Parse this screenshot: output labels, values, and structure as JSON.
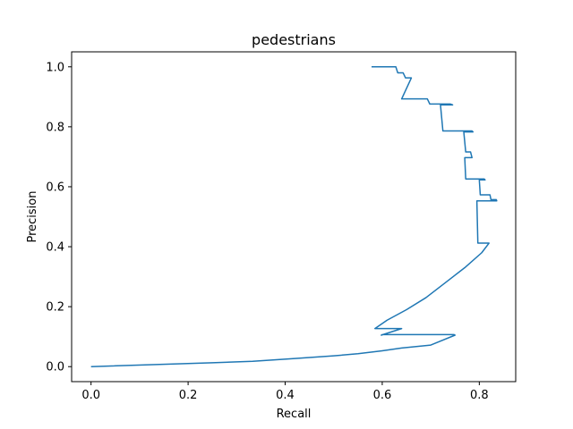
{
  "chart_data": {
    "type": "line",
    "title": "pedestrians",
    "xlabel": "Recall",
    "ylabel": "Precision",
    "xlim": [
      -0.04,
      0.875
    ],
    "ylim": [
      -0.05,
      1.05
    ],
    "xticks": [
      0.0,
      0.2,
      0.4,
      0.6,
      0.8
    ],
    "yticks": [
      0.0,
      0.2,
      0.4,
      0.6,
      0.8,
      1.0
    ],
    "tick_labels_x": [
      "0.0",
      "0.2",
      "0.4",
      "0.6",
      "0.8"
    ],
    "tick_labels_y": [
      "0.0",
      "0.2",
      "0.4",
      "0.6",
      "0.8",
      "1.0"
    ],
    "grid": false,
    "series": [
      {
        "color": "#1f77b4",
        "x": [
          0.578,
          0.628,
          0.632,
          0.643,
          0.648,
          0.66,
          0.64,
          0.693,
          0.698,
          0.74,
          0.745,
          0.72,
          0.725,
          0.785,
          0.787,
          0.768,
          0.772,
          0.782,
          0.785,
          0.77,
          0.772,
          0.81,
          0.812,
          0.8,
          0.802,
          0.822,
          0.824,
          0.835,
          0.836,
          0.795,
          0.797,
          0.82,
          0.805,
          0.77,
          0.73,
          0.69,
          0.65,
          0.61,
          0.585,
          0.64,
          0.598,
          0.6,
          0.748,
          0.75,
          0.7,
          0.64,
          0.6,
          0.55,
          0.5,
          0.42,
          0.333,
          0.25,
          0.0
        ],
        "y": [
          1.0,
          1.0,
          0.98,
          0.98,
          0.963,
          0.963,
          0.893,
          0.893,
          0.876,
          0.876,
          0.873,
          0.873,
          0.786,
          0.786,
          0.783,
          0.783,
          0.716,
          0.716,
          0.697,
          0.697,
          0.626,
          0.626,
          0.623,
          0.623,
          0.573,
          0.573,
          0.557,
          0.557,
          0.553,
          0.553,
          0.412,
          0.412,
          0.38,
          0.33,
          0.28,
          0.23,
          0.19,
          0.155,
          0.127,
          0.127,
          0.105,
          0.107,
          0.107,
          0.105,
          0.072,
          0.062,
          0.053,
          0.043,
          0.036,
          0.027,
          0.018,
          0.013,
          0.0
        ]
      }
    ]
  }
}
